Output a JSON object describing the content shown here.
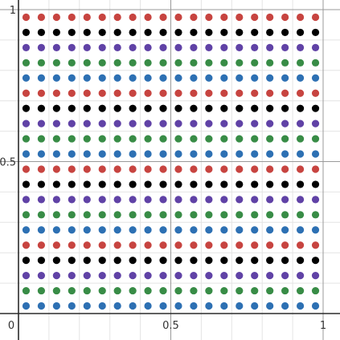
{
  "chart_data": {
    "type": "scatter",
    "title": "",
    "xlabel": "",
    "ylabel": "",
    "xlim": [
      0,
      1
    ],
    "ylim": [
      0,
      1
    ],
    "grid": true,
    "minor_grid_step": 0.1,
    "legend": "none",
    "tick_labels": {
      "origin": "0",
      "x": [
        "0.5",
        "1"
      ],
      "y": [
        "0.5",
        "1"
      ]
    },
    "x": [
      0.025,
      0.075,
      0.125,
      0.175,
      0.225,
      0.275,
      0.325,
      0.375,
      0.425,
      0.475,
      0.525,
      0.575,
      0.625,
      0.675,
      0.725,
      0.775,
      0.825,
      0.875,
      0.925,
      0.975
    ],
    "series": [
      {
        "color": "#c74440",
        "y": [
          0.975,
          0.725,
          0.475,
          0.225
        ]
      },
      {
        "color": "#000000",
        "y": [
          0.925,
          0.675,
          0.425,
          0.175
        ]
      },
      {
        "color": "#6042a6",
        "y": [
          0.875,
          0.625,
          0.375,
          0.125
        ]
      },
      {
        "color": "#388c46",
        "y": [
          0.825,
          0.575,
          0.325,
          0.075
        ]
      },
      {
        "color": "#2d70b3",
        "y": [
          0.775,
          0.525,
          0.275,
          0.025
        ]
      }
    ]
  }
}
